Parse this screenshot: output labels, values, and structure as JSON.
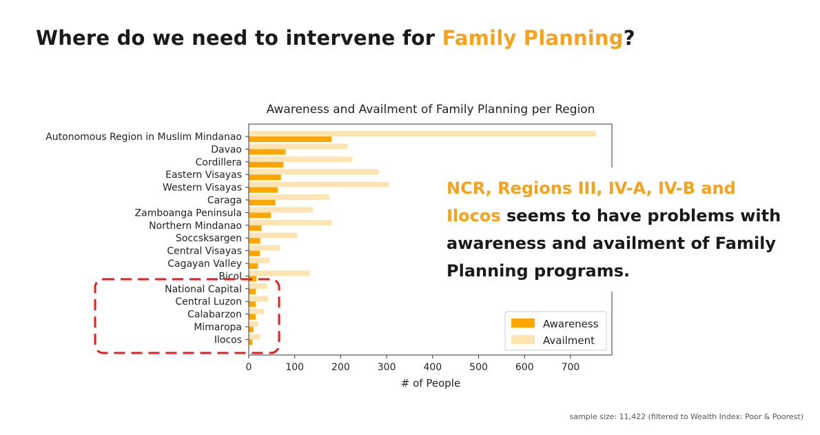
{
  "slide": {
    "title_prefix": "Where do we need to intervene for ",
    "title_highlight": "Family Planning",
    "title_suffix": "?",
    "callout_highlight_1": "NCR, Regions III, IV-A, IV-B and",
    "callout_highlight_2": "Ilocos",
    "callout_rest": " seems to have problems with awareness and availment of Family Planning programs.",
    "footnote": "sample size: 11,422 (filtered to Wealth Index: Poor & Poorest)",
    "colors": {
      "accent": "#f5a21d",
      "awareness": "#ffa500",
      "availment": "#ffe4b3",
      "highlight_box": "#e02020"
    }
  },
  "chart_data": {
    "type": "bar",
    "orientation": "horizontal",
    "title": "Awareness and Availment of Family Planning per Region",
    "xlabel": "# of People",
    "ylabel": "",
    "xlim": [
      0,
      790
    ],
    "xticks": [
      0,
      100,
      200,
      300,
      400,
      500,
      600,
      700
    ],
    "legend_position": "lower-right",
    "grid": false,
    "categories": [
      "Autonomous Region in Muslim Mindanao",
      "Davao",
      "Cordillera",
      "Eastern Visayas",
      "Western Visayas",
      "Caraga",
      "Zamboanga Peninsula",
      "Northern Mindanao",
      "Soccsksargen",
      "Central Visayas",
      "Cagayan Valley",
      "Bicol",
      "National Capital",
      "Central Luzon",
      "Calabarzon",
      "Mimaropa",
      "Ilocos"
    ],
    "series": [
      {
        "name": "Awareness",
        "color": "#ffa500",
        "values": [
          180,
          80,
          75,
          70,
          63,
          58,
          48,
          28,
          25,
          24,
          20,
          17,
          15,
          15,
          15,
          10,
          8
        ]
      },
      {
        "name": "Availment",
        "color": "#ffe4b3",
        "values": [
          755,
          215,
          225,
          283,
          305,
          175,
          140,
          180,
          105,
          68,
          45,
          133,
          40,
          42,
          33,
          20,
          25
        ]
      }
    ]
  }
}
